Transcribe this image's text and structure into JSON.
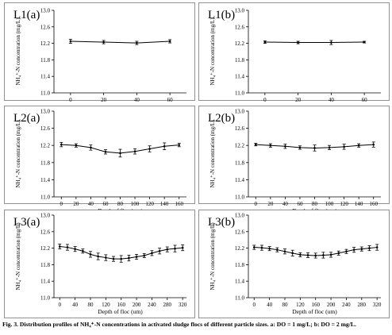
{
  "caption": "Fig. 3. Distribution profiles of NH₄⁺-N concentrations in activated sludge flocs of different particle sizes. a: DO = 1 mg/L; b: DO = 2 mg/L.",
  "chart_data": [
    {
      "type": "line",
      "title": "L1(a)",
      "xlabel": "",
      "ylabel": "NH₄⁺-N concentration (mg/L)",
      "ylim": [
        11,
        13
      ],
      "yticks": [
        "11.0",
        "11.4",
        "11.8",
        "12.2",
        "12.6",
        "13.0"
      ],
      "xlim": [
        -10,
        70
      ],
      "xticks": [
        0,
        20,
        40,
        60
      ],
      "series": [
        {
          "x": [
            0,
            20,
            40,
            60
          ],
          "y": [
            12.25,
            12.23,
            12.21,
            12.25
          ],
          "err": [
            0.05,
            0.04,
            0.04,
            0.04
          ]
        }
      ]
    },
    {
      "type": "line",
      "title": "L1(b)",
      "xlabel": "",
      "ylabel": "NH₄⁺-N concentration (mg/L)",
      "ylim": [
        11,
        13
      ],
      "yticks": [
        "11.0",
        "11.4",
        "11.8",
        "12.2",
        "12.6",
        "13.0"
      ],
      "xlim": [
        -10,
        70
      ],
      "xticks": [
        0,
        20,
        40,
        60
      ],
      "series": [
        {
          "x": [
            0,
            20,
            40,
            60
          ],
          "y": [
            12.23,
            12.22,
            12.22,
            12.23
          ],
          "err": [
            0.03,
            0.03,
            0.05,
            0.02
          ]
        }
      ]
    },
    {
      "type": "line",
      "title": "L2(a)",
      "xlabel": "Depth of floc (um)",
      "ylabel": "NH₄⁺-N concentration (mg/L)",
      "ylim": [
        11,
        13
      ],
      "yticks": [
        "11.0",
        "11.4",
        "11.8",
        "12.2",
        "12.6",
        "13.0"
      ],
      "xlim": [
        -10,
        170
      ],
      "xticks": [
        0,
        20,
        40,
        60,
        80,
        100,
        120,
        140,
        160
      ],
      "series": [
        {
          "x": [
            0,
            20,
            40,
            60,
            80,
            100,
            120,
            140,
            160
          ],
          "y": [
            12.22,
            12.2,
            12.15,
            12.05,
            12.02,
            12.06,
            12.12,
            12.18,
            12.21
          ],
          "err": [
            0.05,
            0.04,
            0.06,
            0.05,
            0.09,
            0.06,
            0.07,
            0.08,
            0.04
          ]
        }
      ]
    },
    {
      "type": "line",
      "title": "L2(b)",
      "xlabel": "Depth of floc (um)",
      "ylabel": "NH₄⁺-N concentration (mg/L)",
      "ylim": [
        11,
        13
      ],
      "yticks": [
        "11.0",
        "11.4",
        "11.8",
        "12.2",
        "12.6",
        "13.0"
      ],
      "xlim": [
        -10,
        170
      ],
      "xticks": [
        0,
        20,
        40,
        60,
        80,
        100,
        120,
        140,
        160
      ],
      "series": [
        {
          "x": [
            0,
            20,
            40,
            60,
            80,
            100,
            120,
            140,
            160
          ],
          "y": [
            12.22,
            12.2,
            12.18,
            12.15,
            12.14,
            12.15,
            12.17,
            12.2,
            12.22
          ],
          "err": [
            0.03,
            0.04,
            0.05,
            0.04,
            0.07,
            0.05,
            0.06,
            0.04,
            0.06
          ]
        }
      ]
    },
    {
      "type": "line",
      "title": "L3(a)",
      "xlabel": "Depth of floc (um)",
      "ylabel": "NH₄⁺-N concentration (mg/L)",
      "ylim": [
        11,
        13
      ],
      "yticks": [
        "11.0",
        "11.4",
        "11.8",
        "12.2",
        "12.6",
        "13.0"
      ],
      "xlim": [
        -15,
        330
      ],
      "xticks": [
        0,
        40,
        80,
        120,
        160,
        200,
        240,
        280,
        320
      ],
      "series": [
        {
          "x": [
            0,
            20,
            40,
            60,
            80,
            100,
            120,
            140,
            160,
            180,
            200,
            220,
            240,
            260,
            280,
            300,
            320
          ],
          "y": [
            12.24,
            12.22,
            12.18,
            12.13,
            12.05,
            12.0,
            11.97,
            11.94,
            11.94,
            11.96,
            11.99,
            12.02,
            12.08,
            12.13,
            12.17,
            12.19,
            12.21
          ],
          "err": [
            0.06,
            0.07,
            0.06,
            0.05,
            0.07,
            0.08,
            0.07,
            0.06,
            0.08,
            0.07,
            0.06,
            0.05,
            0.06,
            0.07,
            0.06,
            0.08,
            0.07
          ]
        }
      ]
    },
    {
      "type": "line",
      "title": "L3(b)",
      "xlabel": "Depth of floc (um)",
      "ylabel": "NH₄⁺-N concentration (mg/L)",
      "ylim": [
        11,
        13
      ],
      "yticks": [
        "11.0",
        "11.4",
        "11.8",
        "12.2",
        "12.6",
        "13.0"
      ],
      "xlim": [
        -15,
        330
      ],
      "xticks": [
        0,
        40,
        80,
        120,
        160,
        200,
        240,
        280,
        320
      ],
      "series": [
        {
          "x": [
            0,
            20,
            40,
            60,
            80,
            100,
            120,
            140,
            160,
            180,
            200,
            220,
            240,
            260,
            280,
            300,
            320
          ],
          "y": [
            12.22,
            12.21,
            12.19,
            12.16,
            12.12,
            12.08,
            12.04,
            12.03,
            12.02,
            12.03,
            12.04,
            12.08,
            12.12,
            12.16,
            12.18,
            12.2,
            12.22
          ],
          "err": [
            0.05,
            0.06,
            0.05,
            0.05,
            0.06,
            0.07,
            0.05,
            0.06,
            0.06,
            0.07,
            0.06,
            0.05,
            0.05,
            0.06,
            0.05,
            0.06,
            0.07
          ]
        }
      ]
    }
  ]
}
